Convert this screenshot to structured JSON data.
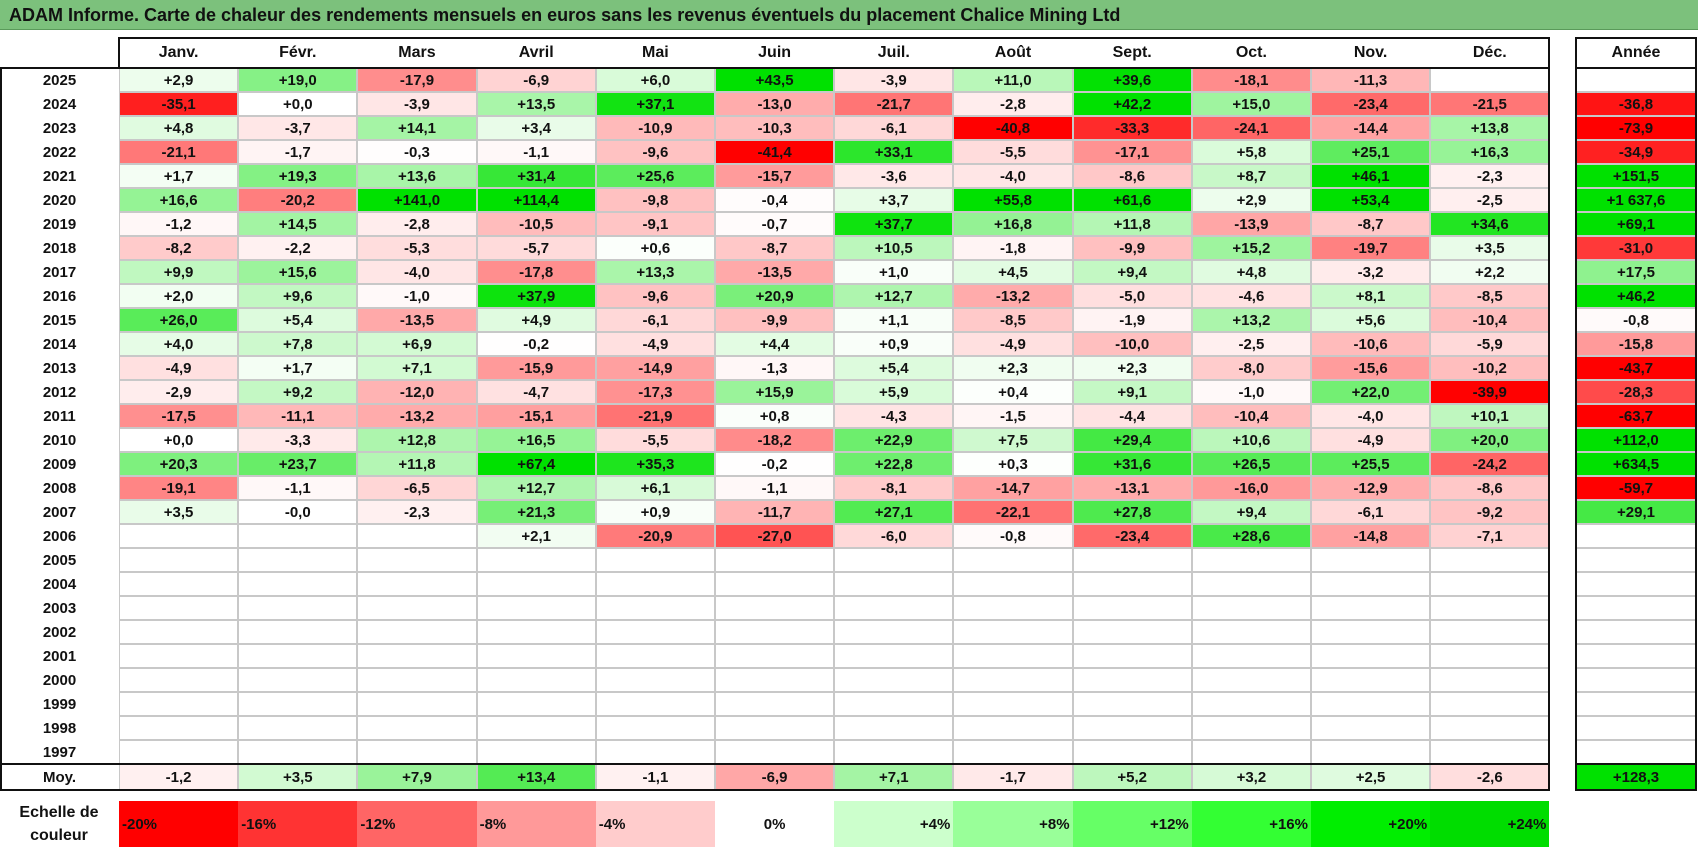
{
  "title": "ADAM Informe. Carte de chaleur des rendements mensuels en euros sans les revenus éventuels du placement Chalice Mining Ltd",
  "chart_data": {
    "type": "heatmap",
    "months": [
      "Janv.",
      "Févr.",
      "Mars",
      "Avril",
      "Mai",
      "Juin",
      "Juil.",
      "Août",
      "Sept.",
      "Oct.",
      "Nov.",
      "Déc."
    ],
    "year_header": "Année",
    "rows": [
      {
        "year": "2025",
        "values": [
          "+2,9",
          "+19,0",
          "-17,9",
          "-6,9",
          "+6,0",
          "+43,5",
          "-3,9",
          "+11,0",
          "+39,6",
          "-18,1",
          "-11,3",
          ""
        ],
        "annual": ""
      },
      {
        "year": "2024",
        "values": [
          "-35,1",
          "+0,0",
          "-3,9",
          "+13,5",
          "+37,1",
          "-13,0",
          "-21,7",
          "-2,8",
          "+42,2",
          "+15,0",
          "-23,4",
          "-21,5"
        ],
        "annual": "-36,8"
      },
      {
        "year": "2023",
        "values": [
          "+4,8",
          "-3,7",
          "+14,1",
          "+3,4",
          "-10,9",
          "-10,3",
          "-6,1",
          "-40,8",
          "-33,3",
          "-24,1",
          "-14,4",
          "+13,8"
        ],
        "annual": "-73,9"
      },
      {
        "year": "2022",
        "values": [
          "-21,1",
          "-1,7",
          "-0,3",
          "-1,1",
          "-9,6",
          "-41,4",
          "+33,1",
          "-5,5",
          "-17,1",
          "+5,8",
          "+25,1",
          "+16,3"
        ],
        "annual": "-34,9"
      },
      {
        "year": "2021",
        "values": [
          "+1,7",
          "+19,3",
          "+13,6",
          "+31,4",
          "+25,6",
          "-15,7",
          "-3,6",
          "-4,0",
          "-8,6",
          "+8,7",
          "+46,1",
          "-2,3"
        ],
        "annual": "+151,5"
      },
      {
        "year": "2020",
        "values": [
          "+16,6",
          "-20,2",
          "+141,0",
          "+114,4",
          "-9,8",
          "-0,4",
          "+3,7",
          "+55,8",
          "+61,6",
          "+2,9",
          "+53,4",
          "-2,5"
        ],
        "annual": "+1 637,6"
      },
      {
        "year": "2019",
        "values": [
          "-1,2",
          "+14,5",
          "-2,8",
          "-10,5",
          "-9,1",
          "-0,7",
          "+37,7",
          "+16,8",
          "+11,8",
          "-13,9",
          "-8,7",
          "+34,6"
        ],
        "annual": "+69,1"
      },
      {
        "year": "2018",
        "values": [
          "-8,2",
          "-2,2",
          "-5,3",
          "-5,7",
          "+0,6",
          "-8,7",
          "+10,5",
          "-1,8",
          "-9,9",
          "+15,2",
          "-19,7",
          "+3,5"
        ],
        "annual": "-31,0"
      },
      {
        "year": "2017",
        "values": [
          "+9,9",
          "+15,6",
          "-4,0",
          "-17,8",
          "+13,3",
          "-13,5",
          "+1,0",
          "+4,5",
          "+9,4",
          "+4,8",
          "-3,2",
          "+2,2"
        ],
        "annual": "+17,5"
      },
      {
        "year": "2016",
        "values": [
          "+2,0",
          "+9,6",
          "-1,0",
          "+37,9",
          "-9,6",
          "+20,9",
          "+12,7",
          "-13,2",
          "-5,0",
          "-4,6",
          "+8,1",
          "-8,5"
        ],
        "annual": "+46,2"
      },
      {
        "year": "2015",
        "values": [
          "+26,0",
          "+5,4",
          "-13,5",
          "+4,9",
          "-6,1",
          "-9,9",
          "+1,1",
          "-8,5",
          "-1,9",
          "+13,2",
          "+5,6",
          "-10,4"
        ],
        "annual": "-0,8"
      },
      {
        "year": "2014",
        "values": [
          "+4,0",
          "+7,8",
          "+6,9",
          "-0,2",
          "-4,9",
          "+4,4",
          "+0,9",
          "-4,9",
          "-10,0",
          "-2,5",
          "-10,6",
          "-5,9"
        ],
        "annual": "-15,8"
      },
      {
        "year": "2013",
        "values": [
          "-4,9",
          "+1,7",
          "+7,1",
          "-15,9",
          "-14,9",
          "-1,3",
          "+5,4",
          "+2,3",
          "+2,3",
          "-8,0",
          "-15,6",
          "-10,2"
        ],
        "annual": "-43,7"
      },
      {
        "year": "2012",
        "values": [
          "-2,9",
          "+9,2",
          "-12,0",
          "-4,7",
          "-17,3",
          "+15,9",
          "+5,9",
          "+0,4",
          "+9,1",
          "-1,0",
          "+22,0",
          "-39,9"
        ],
        "annual": "-28,3"
      },
      {
        "year": "2011",
        "values": [
          "-17,5",
          "-11,1",
          "-13,2",
          "-15,1",
          "-21,9",
          "+0,8",
          "-4,3",
          "-1,5",
          "-4,4",
          "-10,4",
          "-4,0",
          "+10,1"
        ],
        "annual": "-63,7"
      },
      {
        "year": "2010",
        "values": [
          "+0,0",
          "-3,3",
          "+12,8",
          "+16,5",
          "-5,5",
          "-18,2",
          "+22,9",
          "+7,5",
          "+29,4",
          "+10,6",
          "-4,9",
          "+20,0"
        ],
        "annual": "+112,0"
      },
      {
        "year": "2009",
        "values": [
          "+20,3",
          "+23,7",
          "+11,8",
          "+67,4",
          "+35,3",
          "-0,2",
          "+22,8",
          "+0,3",
          "+31,6",
          "+26,5",
          "+25,5",
          "-24,2"
        ],
        "annual": "+634,5"
      },
      {
        "year": "2008",
        "values": [
          "-19,1",
          "-1,1",
          "-6,5",
          "+12,7",
          "+6,1",
          "-1,1",
          "-8,1",
          "-14,7",
          "-13,1",
          "-16,0",
          "-12,9",
          "-8,6"
        ],
        "annual": "-59,7"
      },
      {
        "year": "2007",
        "values": [
          "+3,5",
          "-0,0",
          "-2,3",
          "+21,3",
          "+0,9",
          "-11,7",
          "+27,1",
          "-22,1",
          "+27,8",
          "+9,4",
          "-6,1",
          "-9,2"
        ],
        "annual": "+29,1"
      },
      {
        "year": "2006",
        "values": [
          "",
          "",
          "",
          "+2,1",
          "-20,9",
          "-27,0",
          "-6,0",
          "-0,8",
          "-23,4",
          "+28,6",
          "-14,8",
          "-7,1"
        ],
        "annual": ""
      },
      {
        "year": "2005",
        "values": [
          "",
          "",
          "",
          "",
          "",
          "",
          "",
          "",
          "",
          "",
          "",
          ""
        ],
        "annual": ""
      },
      {
        "year": "2004",
        "values": [
          "",
          "",
          "",
          "",
          "",
          "",
          "",
          "",
          "",
          "",
          "",
          ""
        ],
        "annual": ""
      },
      {
        "year": "2003",
        "values": [
          "",
          "",
          "",
          "",
          "",
          "",
          "",
          "",
          "",
          "",
          "",
          ""
        ],
        "annual": ""
      },
      {
        "year": "2002",
        "values": [
          "",
          "",
          "",
          "",
          "",
          "",
          "",
          "",
          "",
          "",
          "",
          ""
        ],
        "annual": ""
      },
      {
        "year": "2001",
        "values": [
          "",
          "",
          "",
          "",
          "",
          "",
          "",
          "",
          "",
          "",
          "",
          ""
        ],
        "annual": ""
      },
      {
        "year": "2000",
        "values": [
          "",
          "",
          "",
          "",
          "",
          "",
          "",
          "",
          "",
          "",
          "",
          ""
        ],
        "annual": ""
      },
      {
        "year": "1999",
        "values": [
          "",
          "",
          "",
          "",
          "",
          "",
          "",
          "",
          "",
          "",
          "",
          ""
        ],
        "annual": ""
      },
      {
        "year": "1998",
        "values": [
          "",
          "",
          "",
          "",
          "",
          "",
          "",
          "",
          "",
          "",
          "",
          ""
        ],
        "annual": ""
      },
      {
        "year": "1997",
        "values": [
          "",
          "",
          "",
          "",
          "",
          "",
          "",
          "",
          "",
          "",
          "",
          ""
        ],
        "annual": ""
      }
    ],
    "average": {
      "label": "Moy.",
      "values": [
        "-1,2",
        "+3,5",
        "+7,9",
        "+13,4",
        "-1,1",
        "-6,9",
        "+7,1",
        "-1,7",
        "+5,2",
        "+3,2",
        "+2,5",
        "-2,6"
      ],
      "annual": "+128,3"
    },
    "scale": {
      "label": "Echelle de couleur",
      "items": [
        "-20%",
        "-16%",
        "-12%",
        "-8%",
        "-4%",
        "0%",
        "+4%",
        "+8%",
        "+12%",
        "+16%",
        "+20%",
        "+24%"
      ],
      "colors": [
        "#ff0000",
        "#ff3333",
        "#ff6565",
        "#ff9999",
        "#ffcccc",
        "#ffffff",
        "#ccffcc",
        "#99ff99",
        "#66ff66",
        "#33ff33",
        "#00ee00",
        "#00dd00"
      ]
    }
  }
}
